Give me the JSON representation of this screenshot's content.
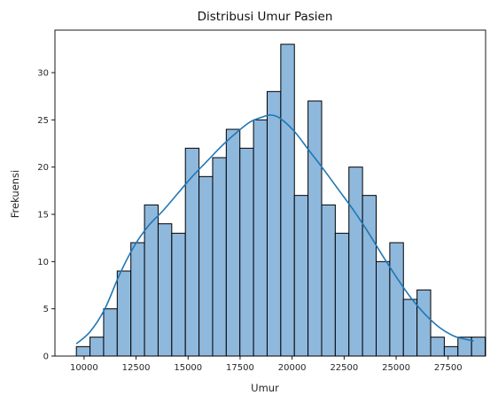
{
  "chart_data": {
    "type": "bar",
    "title": "Distribusi Umur Pasien",
    "xlabel": "Umur",
    "ylabel": "Frekuensi",
    "xlim": [
      8600,
      29300
    ],
    "ylim": [
      0,
      34.5
    ],
    "grid": false,
    "bins": {
      "start": 9630,
      "width": 655,
      "counts": [
        1,
        2,
        5,
        9,
        12,
        16,
        14,
        13,
        22,
        19,
        21,
        24,
        22,
        25,
        28,
        33,
        17,
        27,
        16,
        13,
        20,
        17,
        10,
        12,
        6,
        7,
        2,
        1,
        2,
        2
      ]
    },
    "xticks": [
      10000,
      12500,
      15000,
      17500,
      20000,
      22500,
      25000,
      27500
    ],
    "yticks": [
      0,
      5,
      10,
      15,
      20,
      25,
      30
    ],
    "kde": {
      "x": [
        9630,
        10300,
        11000,
        11700,
        12400,
        13100,
        13800,
        14500,
        15200,
        15900,
        16600,
        17300,
        18000,
        18700,
        19000,
        19400,
        20100,
        20800,
        21500,
        22200,
        22900,
        23600,
        24300,
        25000,
        25700,
        26400,
        27100,
        27800,
        28500,
        28730
      ],
      "y": [
        1.3,
        2.6,
        5.0,
        8.6,
        11.6,
        13.8,
        15.4,
        17.2,
        19.0,
        20.6,
        22.2,
        23.6,
        24.8,
        25.4,
        25.5,
        25.2,
        23.8,
        21.8,
        19.8,
        17.7,
        15.6,
        13.3,
        10.8,
        8.4,
        6.2,
        4.4,
        3.0,
        2.1,
        1.7,
        1.6
      ]
    },
    "colors": {
      "bar_fill": "#8fb8dd",
      "bar_edge": "#000000",
      "kde_line": "#1f77b4",
      "axes": "#000000"
    }
  }
}
